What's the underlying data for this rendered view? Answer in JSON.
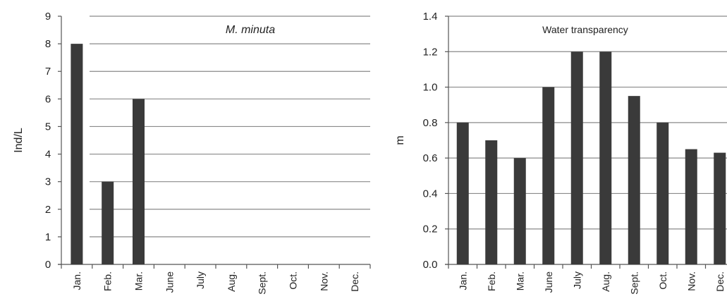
{
  "chart_data": [
    {
      "type": "bar",
      "title": "M. minuta",
      "xlabel": "",
      "ylabel": "Ind/L",
      "ylim": [
        0,
        9
      ],
      "yticks": [
        "0",
        "1",
        "2",
        "3",
        "4",
        "5",
        "6",
        "7",
        "8",
        "9"
      ],
      "grid": true,
      "categories": [
        "Jan.",
        "Feb.",
        "Mar.",
        "June",
        "July",
        "Aug.",
        "Sept.",
        "Oct.",
        "Nov.",
        "Dec."
      ],
      "values": [
        8,
        3,
        6,
        0,
        0,
        0,
        0,
        0,
        0,
        0
      ],
      "bar_color": "#3a3a3a"
    },
    {
      "type": "bar",
      "title": "Water transparency",
      "xlabel": "",
      "ylabel": "m",
      "ylim": [
        0,
        1.4
      ],
      "yticks": [
        "0.0",
        "0.2",
        "0.4",
        "0.6",
        "0.8",
        "1.0",
        "1.2",
        "1.4"
      ],
      "grid": true,
      "categories": [
        "Jan.",
        "Feb.",
        "Mar.",
        "June",
        "July",
        "Aug.",
        "Sept.",
        "Oct.",
        "Nov.",
        "Dec."
      ],
      "values": [
        0.8,
        0.7,
        0.6,
        1.0,
        1.2,
        1.2,
        0.95,
        0.8,
        0.65,
        0.63
      ],
      "bar_color": "#3a3a3a"
    }
  ]
}
